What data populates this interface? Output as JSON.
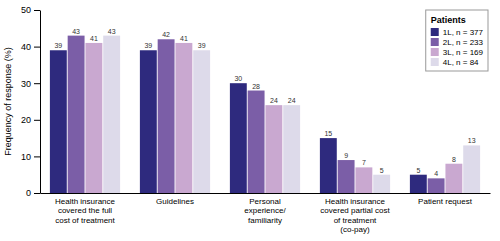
{
  "chart_data": {
    "type": "bar",
    "categories": [
      "Health insurance\ncovered the full\ncost of treatment",
      "Guidelines",
      "Personal\nexperience/\nfamiliarity",
      "Health insurance\ncovered partial cost\nof treatment\n(co-pay)",
      "Patient request"
    ],
    "series": [
      {
        "name": "1L, n = 377",
        "color": "#2E2A7E",
        "values": [
          39,
          39,
          30,
          15,
          5
        ]
      },
      {
        "name": "2L, n = 233",
        "color": "#7B5EA7",
        "values": [
          43,
          42,
          28,
          9,
          4
        ]
      },
      {
        "name": "3L, n = 169",
        "color": "#C9A8D0",
        "values": [
          41,
          41,
          24,
          7,
          8
        ]
      },
      {
        "name": "4L, n = 84",
        "color": "#DDDAEA",
        "values": [
          43,
          39,
          24,
          5,
          13
        ]
      }
    ],
    "y_label": "Frequency of response (%)",
    "ylim": [
      0,
      50
    ],
    "yticks": [
      0,
      10,
      20,
      30,
      40,
      50
    ],
    "legend_title": "Patients",
    "legend": "upper right",
    "data_labels": true,
    "grid": false
  }
}
